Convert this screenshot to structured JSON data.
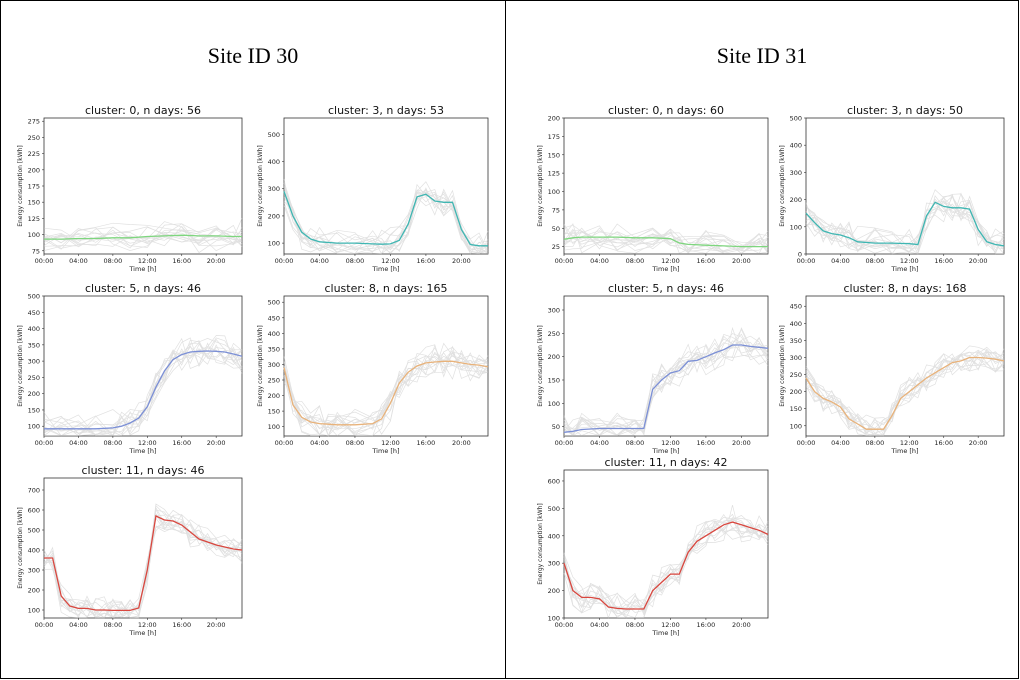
{
  "sites": [
    {
      "title": "Site ID 30",
      "charts": [
        {
          "title": "cluster: 0, n days: 56",
          "ylabel": "Energy consumption [kWh]",
          "xlabel": "Time [h]",
          "ylim": [
            70,
            280
          ],
          "yticks": [
            75,
            100,
            125,
            150,
            175,
            200,
            225,
            250,
            275
          ],
          "color": "#7ed67e",
          "ytick_gap": 10
        },
        {
          "title": "cluster: 3, n days: 53",
          "ylabel": "Energy consumption [kWh]",
          "xlabel": "Time [h]",
          "ylim": [
            60,
            560
          ],
          "yticks": [
            100,
            200,
            300,
            400,
            500
          ],
          "color": "#3fb6b2",
          "ytick_gap": 10
        },
        {
          "title": "cluster: 5, n days: 46",
          "ylabel": "Energy consumption [kWh]",
          "xlabel": "Time [h]",
          "ylim": [
            70,
            500
          ],
          "yticks": [
            100,
            150,
            200,
            250,
            300,
            350,
            400,
            450,
            500
          ],
          "color": "#7b8fd6",
          "ytick_gap": 10
        },
        {
          "title": "cluster: 8, n days: 165",
          "ylabel": "Energy consumption [kWh]",
          "xlabel": "Time [h]",
          "ylim": [
            70,
            520
          ],
          "yticks": [
            100,
            150,
            200,
            250,
            300,
            350,
            400,
            450,
            500
          ],
          "color": "#e8b27a",
          "ytick_gap": 10
        },
        {
          "title": "cluster: 11, n days: 46",
          "ylabel": "Energy consumption [kWh]",
          "xlabel": "Time [h]",
          "ylim": [
            60,
            760
          ],
          "yticks": [
            100,
            200,
            300,
            400,
            500,
            600,
            700
          ],
          "color": "#d9473f",
          "ytick_gap": 10
        }
      ]
    },
    {
      "title": "Site ID 31",
      "charts": [
        {
          "title": "cluster: 0, n days: 60",
          "ylabel": "Energy consumption [kWh]",
          "xlabel": "Time [h]",
          "ylim": [
            15,
            200
          ],
          "yticks": [
            25,
            50,
            75,
            100,
            125,
            150,
            175,
            200
          ],
          "color": "#7ed67e",
          "ytick_gap": 10
        },
        {
          "title": "cluster: 3, n days: 50",
          "ylabel": "Energy consumption [kWh]",
          "xlabel": "Time [h]",
          "ylim": [
            0,
            500
          ],
          "yticks": [
            0,
            100,
            200,
            300,
            400,
            500
          ],
          "color": "#3fb6b2",
          "ytick_gap": 10
        },
        {
          "title": "cluster: 5, n days: 46",
          "ylabel": "Energy consumption [kWh]",
          "xlabel": "Time [h]",
          "ylim": [
            30,
            330
          ],
          "yticks": [
            50,
            100,
            150,
            200,
            250,
            300
          ],
          "color": "#7b8fd6",
          "ytick_gap": 10
        },
        {
          "title": "cluster: 8, n days: 168",
          "ylabel": "Energy consumption [kWh]",
          "xlabel": "Time [h]",
          "ylim": [
            70,
            480
          ],
          "yticks": [
            100,
            150,
            200,
            250,
            300,
            350,
            400,
            450
          ],
          "color": "#e8b27a",
          "ytick_gap": 10
        },
        {
          "title": "cluster: 11, n days: 42",
          "ylabel": "Energy consumption [kWh]",
          "xlabel": "Time [h]",
          "ylim": [
            100,
            640
          ],
          "yticks": [
            100,
            200,
            300,
            400,
            500,
            600
          ],
          "color": "#d9473f",
          "ytick_gap": 10
        }
      ]
    }
  ],
  "xticks": [
    "00:00",
    "04:00",
    "08:00",
    "12:00",
    "16:00",
    "20:00"
  ],
  "chart_data": [
    {
      "site": "Site ID 30",
      "type": "line",
      "title": "cluster: 0, n days: 56",
      "xlabel": "Time [h]",
      "ylabel": "Energy consumption [kWh]",
      "x_hours": [
        0,
        2,
        4,
        6,
        8,
        10,
        12,
        14,
        16,
        18,
        20,
        22,
        23
      ],
      "series": [
        {
          "values": [
            93,
            93,
            94,
            94,
            95,
            95,
            97,
            98,
            99,
            98,
            98,
            97,
            97
          ]
        }
      ]
    },
    {
      "site": "Site ID 30",
      "type": "line",
      "title": "cluster: 3, n days: 53",
      "xlabel": "Time [h]",
      "ylabel": "Energy consumption [kWh]",
      "x_hours": [
        0,
        1,
        2,
        3,
        4,
        6,
        8,
        10,
        11,
        12,
        13,
        14,
        15,
        16,
        17,
        18,
        19,
        20,
        21,
        22,
        23
      ],
      "series": [
        {
          "values": [
            290,
            200,
            140,
            115,
            105,
            100,
            100,
            97,
            96,
            97,
            110,
            170,
            270,
            280,
            255,
            250,
            250,
            150,
            95,
            90,
            90
          ]
        }
      ]
    },
    {
      "site": "Site ID 30",
      "type": "line",
      "title": "cluster: 5, n days: 46",
      "xlabel": "Time [h]",
      "ylabel": "Energy consumption [kWh]",
      "x_hours": [
        0,
        2,
        4,
        6,
        8,
        9,
        10,
        11,
        12,
        13,
        14,
        15,
        16,
        17,
        18,
        19,
        20,
        21,
        22,
        23
      ],
      "series": [
        {
          "values": [
            92,
            92,
            92,
            92,
            95,
            100,
            110,
            125,
            160,
            220,
            270,
            305,
            320,
            328,
            330,
            331,
            330,
            328,
            322,
            315
          ]
        }
      ]
    },
    {
      "site": "Site ID 30",
      "type": "line",
      "title": "cluster: 8, n days: 165",
      "xlabel": "Time [h]",
      "ylabel": "Energy consumption [kWh]",
      "x_hours": [
        0,
        1,
        2,
        3,
        4,
        5,
        6,
        8,
        10,
        11,
        12,
        13,
        14,
        15,
        16,
        17,
        18,
        19,
        20,
        21,
        22,
        23
      ],
      "series": [
        {
          "values": [
            290,
            170,
            130,
            115,
            110,
            108,
            106,
            106,
            110,
            125,
            175,
            240,
            275,
            295,
            305,
            308,
            310,
            310,
            305,
            300,
            298,
            292
          ]
        }
      ]
    },
    {
      "site": "Site ID 30",
      "type": "line",
      "title": "cluster: 11, n days: 46",
      "xlabel": "Time [h]",
      "ylabel": "Energy consumption [kWh]",
      "x_hours": [
        0,
        1,
        2,
        3,
        4,
        5,
        6,
        7,
        8,
        9,
        10,
        11,
        12,
        13,
        14,
        15,
        16,
        17,
        18,
        19,
        20,
        21,
        22,
        23
      ],
      "series": [
        {
          "values": [
            360,
            360,
            170,
            120,
            108,
            108,
            100,
            100,
            98,
            98,
            98,
            110,
            300,
            570,
            550,
            545,
            525,
            490,
            455,
            440,
            425,
            415,
            405,
            400
          ]
        }
      ]
    },
    {
      "site": "Site ID 31",
      "type": "line",
      "title": "cluster: 0, n days: 60",
      "xlabel": "Time [h]",
      "ylabel": "Energy consumption [kWh]",
      "x_hours": [
        0,
        1,
        2,
        4,
        6,
        8,
        10,
        12,
        13,
        14,
        16,
        18,
        20,
        22,
        23
      ],
      "series": [
        {
          "values": [
            35,
            37,
            38,
            38,
            38,
            37,
            37,
            36,
            30,
            28,
            27,
            26,
            25,
            25,
            25
          ]
        }
      ]
    },
    {
      "site": "Site ID 31",
      "type": "line",
      "title": "cluster: 3, n days: 50",
      "xlabel": "Time [h]",
      "ylabel": "Energy consumption [kWh]",
      "x_hours": [
        0,
        1,
        2,
        3,
        4,
        5,
        6,
        8,
        10,
        12,
        13,
        14,
        15,
        16,
        17,
        18,
        19,
        20,
        21,
        22,
        23
      ],
      "series": [
        {
          "values": [
            150,
            115,
            85,
            75,
            70,
            60,
            45,
            40,
            40,
            38,
            35,
            140,
            190,
            175,
            170,
            170,
            165,
            90,
            45,
            35,
            30
          ]
        }
      ]
    },
    {
      "site": "Site ID 31",
      "type": "line",
      "title": "cluster: 5, n days: 46",
      "xlabel": "Time [h]",
      "ylabel": "Energy consumption [kWh]",
      "x_hours": [
        0,
        1,
        2,
        4,
        6,
        8,
        9,
        10,
        11,
        12,
        13,
        14,
        15,
        16,
        17,
        18,
        19,
        20,
        21,
        22,
        23
      ],
      "series": [
        {
          "values": [
            38,
            40,
            44,
            46,
            46,
            46,
            46,
            130,
            150,
            165,
            170,
            190,
            192,
            200,
            208,
            215,
            225,
            225,
            222,
            220,
            218
          ]
        }
      ]
    },
    {
      "site": "Site ID 31",
      "type": "line",
      "title": "cluster: 8, n days: 168",
      "xlabel": "Time [h]",
      "ylabel": "Energy consumption [kWh]",
      "x_hours": [
        0,
        1,
        2,
        3,
        4,
        5,
        6,
        7,
        8,
        9,
        10,
        11,
        12,
        13,
        14,
        15,
        16,
        17,
        18,
        19,
        20,
        21,
        22,
        23
      ],
      "series": [
        {
          "values": [
            240,
            200,
            180,
            170,
            155,
            120,
            105,
            90,
            90,
            90,
            130,
            180,
            200,
            220,
            240,
            255,
            270,
            285,
            290,
            300,
            300,
            298,
            295,
            290
          ]
        }
      ]
    },
    {
      "site": "Site ID 31",
      "type": "line",
      "title": "cluster: 11, n days: 42",
      "xlabel": "Time [h]",
      "ylabel": "Energy consumption [kWh]",
      "x_hours": [
        0,
        1,
        2,
        3,
        4,
        5,
        6,
        7,
        8,
        9,
        10,
        11,
        12,
        13,
        14,
        15,
        16,
        17,
        18,
        19,
        20,
        21,
        22,
        23
      ],
      "series": [
        {
          "values": [
            300,
            200,
            175,
            175,
            170,
            140,
            135,
            133,
            133,
            133,
            200,
            230,
            260,
            260,
            340,
            380,
            400,
            420,
            440,
            450,
            440,
            430,
            420,
            405
          ]
        }
      ]
    }
  ]
}
